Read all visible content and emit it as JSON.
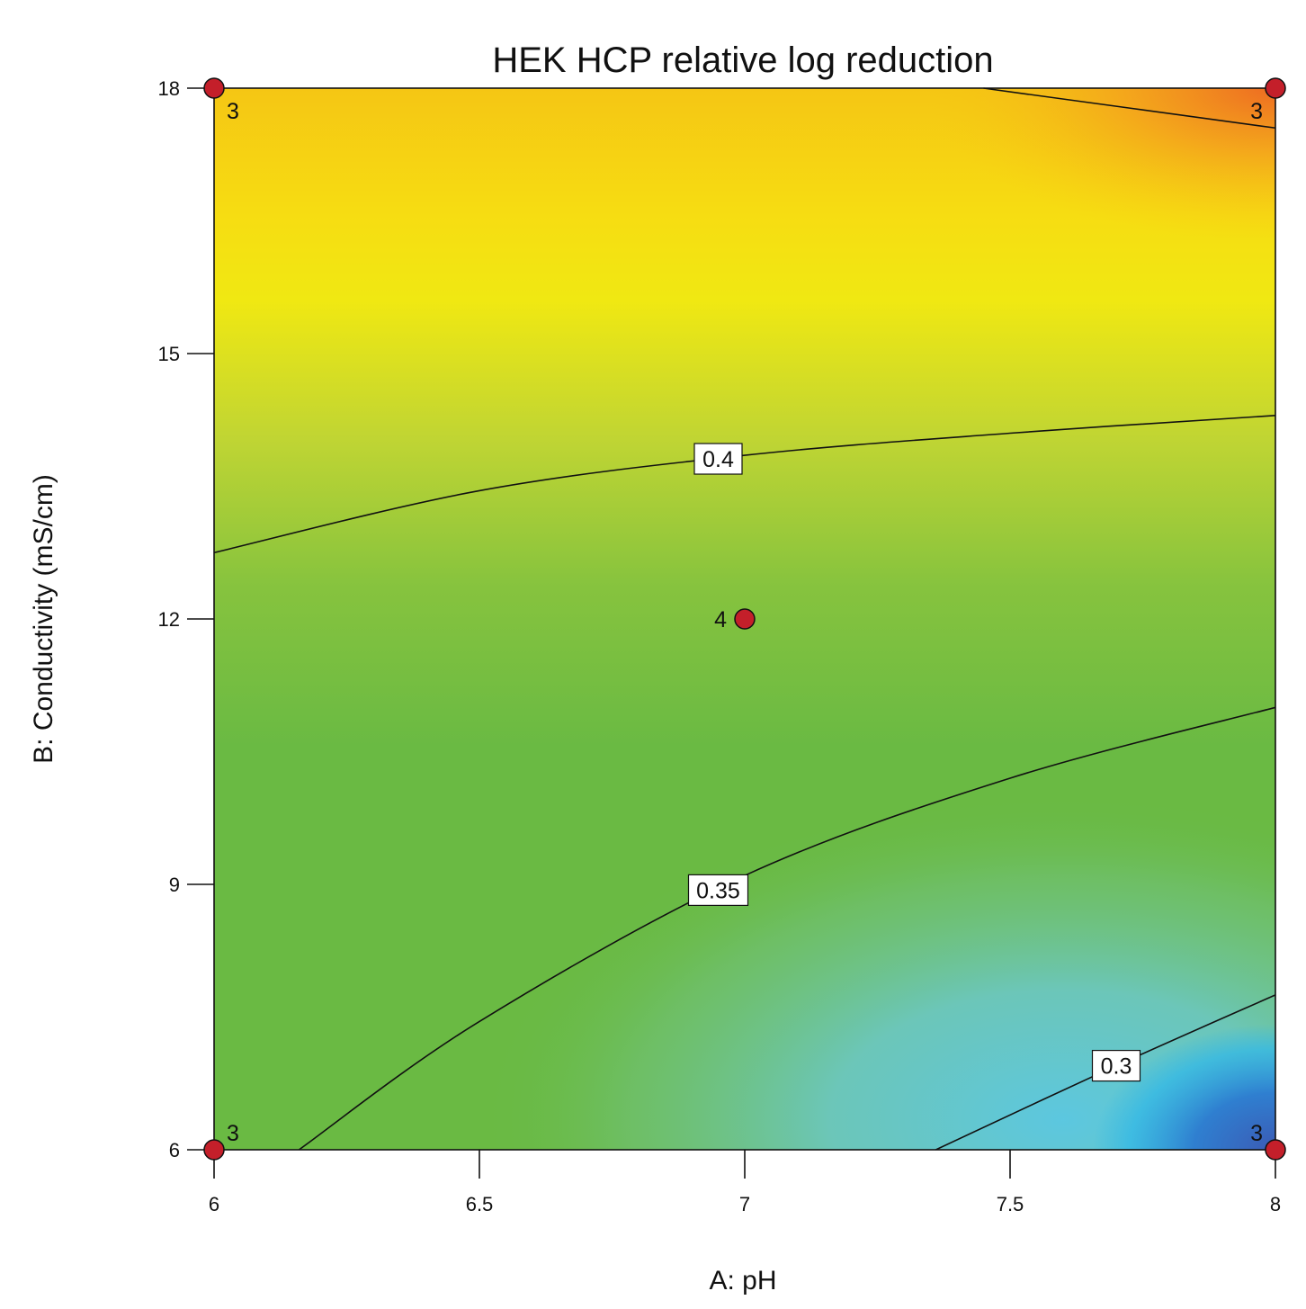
{
  "chart_data": {
    "type": "contour",
    "title": "HEK HCP relative log reduction",
    "xlabel": "A: pH",
    "ylabel": "B: Conductivity (mS/cm)",
    "xlim": [
      6,
      8
    ],
    "ylim": [
      6,
      18
    ],
    "xticks": [
      "6",
      "6.5",
      "7",
      "7.5",
      "8"
    ],
    "yticks": [
      "6",
      "9",
      "12",
      "15",
      "18"
    ],
    "colorscale": {
      "low": "#3b5bb5",
      "mid_low": "#2fb7e8",
      "mid": "#6ab943",
      "mid_high": "#f2e511",
      "high": "#ef6f22"
    },
    "contours": [
      {
        "level": "0.4",
        "points": [
          [
            6,
            12.75
          ],
          [
            6.5,
            13.45
          ],
          [
            7,
            13.85
          ],
          [
            7.5,
            14.1
          ],
          [
            8,
            14.3
          ]
        ]
      },
      {
        "level": "0.35",
        "points": [
          [
            6.16,
            6
          ],
          [
            6.5,
            7.45
          ],
          [
            7,
            9.1
          ],
          [
            7.5,
            10.2
          ],
          [
            8,
            11
          ]
        ]
      },
      {
        "level": "0.3",
        "points": [
          [
            7.36,
            6
          ],
          [
            7.7,
            6.95
          ],
          [
            8,
            7.75
          ]
        ]
      },
      {
        "level": "",
        "points": [
          [
            7.45,
            18
          ],
          [
            8,
            17.55
          ]
        ]
      }
    ],
    "design_points": [
      {
        "x": 6,
        "y": 18,
        "runs": "3"
      },
      {
        "x": 8,
        "y": 18,
        "runs": "3"
      },
      {
        "x": 7,
        "y": 12,
        "runs": "4"
      },
      {
        "x": 6,
        "y": 6,
        "runs": "3"
      },
      {
        "x": 8,
        "y": 6,
        "runs": "3"
      }
    ]
  }
}
